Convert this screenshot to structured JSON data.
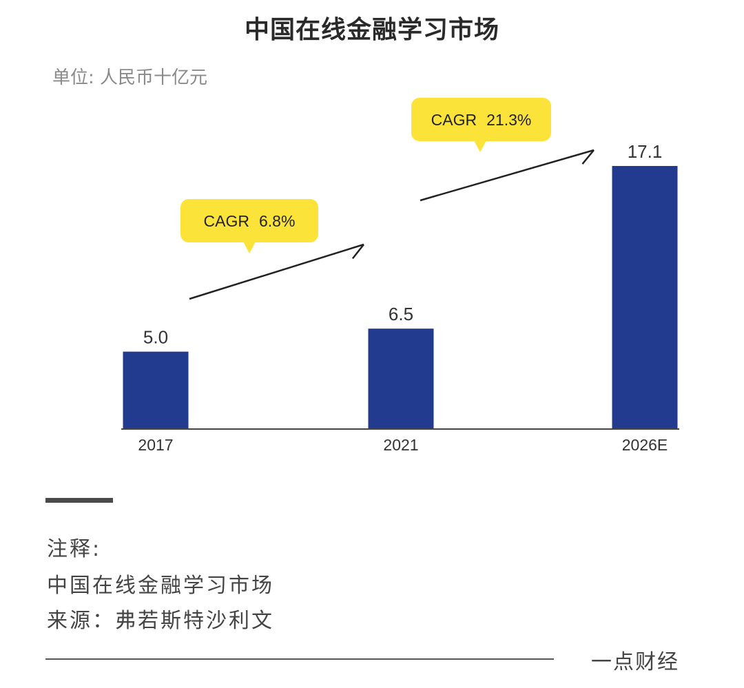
{
  "header": {
    "title": "中国在线金融学习市场",
    "unit": "单位: 人民币十亿元"
  },
  "chart_data": {
    "type": "bar",
    "title": "中国在线金融学习市场",
    "ylabel": "单位: 人民币十亿元",
    "categories": [
      "2017",
      "2021",
      "2026E"
    ],
    "values": [
      5.0,
      6.5,
      17.1
    ],
    "value_labels": [
      "5.0",
      "6.5",
      "17.1"
    ],
    "ylim": [
      0,
      17.1
    ],
    "grid": false,
    "annotations": [
      {
        "label": "CAGR",
        "value": "6.8%",
        "from": "2017",
        "to": "2021"
      },
      {
        "label": "CAGR",
        "value": "21.3%",
        "from": "2021",
        "to": "2026E"
      }
    ],
    "colors": {
      "bar": "#233b8e",
      "callout": "#fbe339",
      "axis": "#444444"
    }
  },
  "notes": {
    "label": "注释:",
    "line1": "中国在线金融学习市场",
    "line2": "来源：弗若斯特沙利文"
  },
  "footer": {
    "brand": "一点财经"
  }
}
